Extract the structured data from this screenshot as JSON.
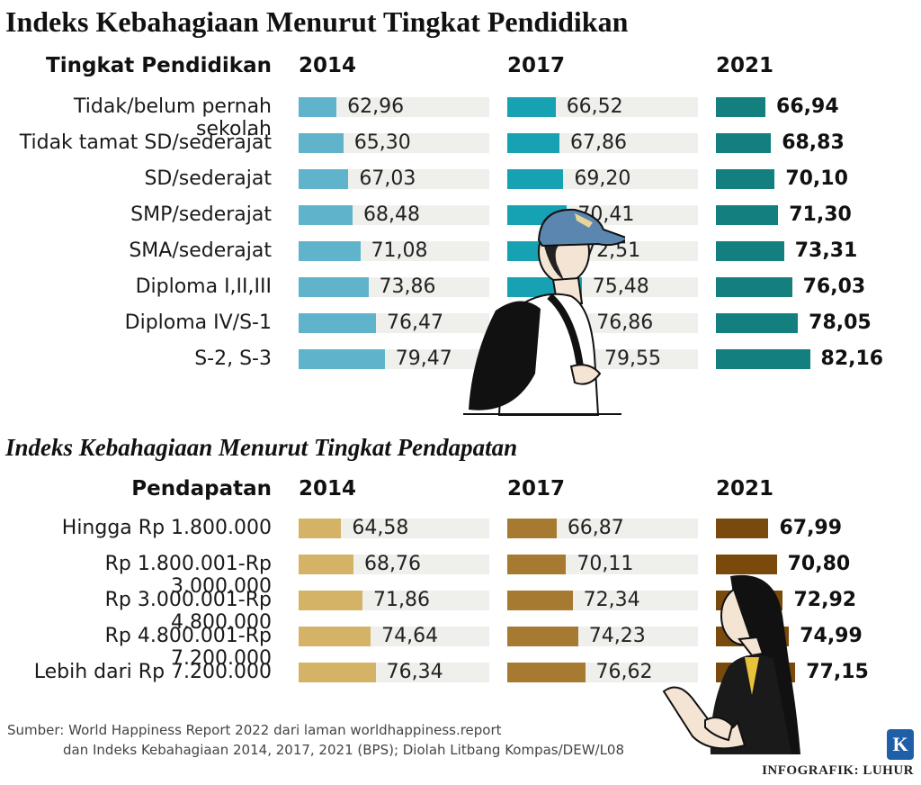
{
  "titles": {
    "education": "Indeks Kebahagiaan Menurut Tingkat Pendidikan",
    "income": "Indeks Kebahagiaan Menurut Tingkat Pendapatan"
  },
  "colors": {
    "edu": [
      "#5fb4cc",
      "#16a2b2",
      "#137f7f"
    ],
    "inc": [
      "#d4b266",
      "#a77a32",
      "#7a4a0c"
    ],
    "track": "#efefec"
  },
  "chart_data": [
    {
      "type": "bar",
      "title": "Indeks Kebahagiaan Menurut Tingkat Pendidikan",
      "category_header": "Tingkat Pendidikan",
      "categories": [
        "Tidak/belum pernah sekolah",
        "Tidak tamat SD/sederajat",
        "SD/sederajat",
        "SMP/sederajat",
        "SMA/sederajat",
        "Diploma I,II,III",
        "Diploma IV/S-1",
        "S-2, S-3"
      ],
      "series": [
        {
          "name": "2014",
          "values": [
            62.96,
            65.3,
            67.03,
            68.48,
            71.08,
            73.86,
            76.47,
            79.47
          ],
          "labels": [
            "62,96",
            "65,30",
            "67,03",
            "68,48",
            "71,08",
            "73,86",
            "76,47",
            "79,47"
          ]
        },
        {
          "name": "2017",
          "values": [
            66.52,
            67.86,
            69.2,
            70.41,
            72.51,
            75.48,
            76.86,
            79.55
          ],
          "labels": [
            "66,52",
            "67,86",
            "69,20",
            "70,41",
            "72,51",
            "75,48",
            "76,86",
            "79,55"
          ]
        },
        {
          "name": "2021",
          "values": [
            66.94,
            68.83,
            70.1,
            71.3,
            73.31,
            76.03,
            78.05,
            82.16
          ],
          "labels": [
            "66,94",
            "68,83",
            "70,10",
            "71,30",
            "73,31",
            "76,03",
            "78,05",
            "82,16"
          ]
        }
      ]
    },
    {
      "type": "bar",
      "title": "Indeks Kebahagiaan Menurut Tingkat Pendapatan",
      "category_header": "Pendapatan",
      "categories": [
        "Hingga Rp 1.800.000",
        "Rp 1.800.001-Rp 3.000.000",
        "Rp 3.000.001-Rp 4.800.000",
        "Rp 4.800.001-Rp 7.200.000",
        "Lebih dari Rp 7.200.000"
      ],
      "series": [
        {
          "name": "2014",
          "values": [
            64.58,
            68.76,
            71.86,
            74.64,
            76.34
          ],
          "labels": [
            "64,58",
            "68,76",
            "71,86",
            "74,64",
            "76,34"
          ]
        },
        {
          "name": "2017",
          "values": [
            66.87,
            70.11,
            72.34,
            74.23,
            76.62
          ],
          "labels": [
            "66,87",
            "70,11",
            "72,34",
            "74,23",
            "76,62"
          ]
        },
        {
          "name": "2021",
          "values": [
            67.99,
            70.8,
            72.92,
            74.99,
            77.15
          ],
          "labels": [
            "67,99",
            "70,80",
            "72,92",
            "74,99",
            "77,15"
          ]
        }
      ]
    }
  ],
  "source": {
    "line1": "Sumber: World Happiness Report 2022 dari laman worldhappiness.report",
    "line2": "dan Indeks Kebahagiaan 2014, 2017, 2021 (BPS); Diolah Litbang Kompas/DEW/L08"
  },
  "credit": "INFOGRAFIK: LUHUR",
  "logo_letter": "K",
  "illustrations": [
    "student-with-backpack",
    "smiling-woman-in-blazer"
  ]
}
